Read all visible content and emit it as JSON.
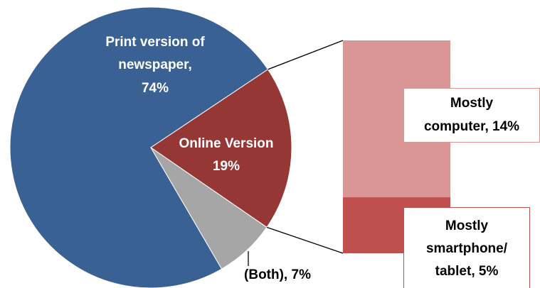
{
  "chart_data": {
    "type": "bar-of-pie",
    "categories": [
      "Print version of newspaper,",
      "Online Version",
      "(Both),"
    ],
    "values": [
      74,
      19,
      7
    ],
    "value_labels": [
      "74%",
      "19%",
      "7%"
    ],
    "colors": [
      "#3a6194",
      "#953735",
      "#a6a6a6"
    ],
    "breakdown": {
      "categories": [
        "Mostly computer,",
        "Mostly smartphone/ tablet,"
      ],
      "values": [
        14,
        5
      ],
      "value_labels": [
        "14%",
        "5%"
      ],
      "colors": [
        "#d99694",
        "#c0504d"
      ]
    }
  }
}
